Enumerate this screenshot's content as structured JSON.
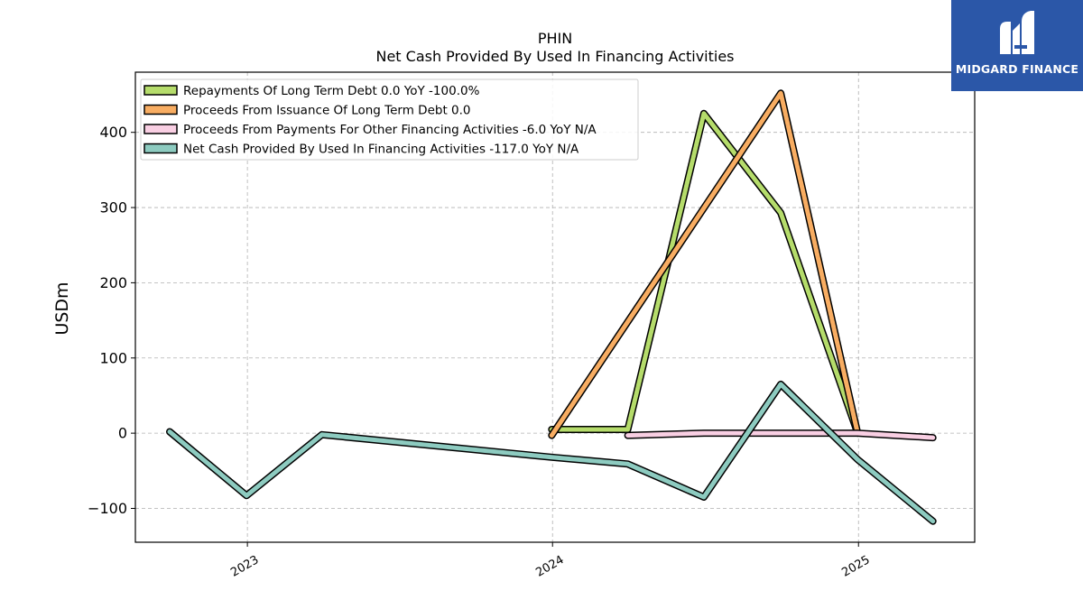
{
  "chart_data": {
    "type": "line",
    "title": "PHIN",
    "subtitle": "Net Cash Provided By Used In Financing Activities",
    "ylabel": "USDm",
    "xlabel": "",
    "ylim": [
      -145,
      480
    ],
    "xlim": [
      "2022-08-20",
      "2025-05-20"
    ],
    "grid": true,
    "legend_placement": "top-left",
    "x_ticks": [
      "2023-01-01",
      "2024-01-01",
      "2025-01-01"
    ],
    "x_tick_labels": [
      "2023",
      "2024",
      "2025"
    ],
    "y_ticks": [
      -100,
      0,
      100,
      200,
      300,
      400
    ],
    "y_tick_labels": [
      "−100",
      "0",
      "100",
      "200",
      "300",
      "400"
    ],
    "series": [
      {
        "name": "Repayments Of Long Term Debt",
        "legend": "Repayments Of Long Term Debt  0.0 YoY -100.0%",
        "color": "#b5dc6b",
        "points": [
          [
            "2023-12-31",
            5
          ],
          [
            "2024-03-31",
            5
          ],
          [
            "2024-06-30",
            425
          ],
          [
            "2024-09-30",
            293
          ],
          [
            "2024-12-31",
            0
          ]
        ]
      },
      {
        "name": "Proceeds From Issuance Of Long Term Debt",
        "legend": "Proceeds From Issuance Of Long Term Debt  0.0",
        "color": "#f8ad62",
        "points": [
          [
            "2023-12-31",
            -3
          ],
          [
            "2024-09-30",
            452
          ],
          [
            "2024-12-31",
            0
          ]
        ]
      },
      {
        "name": "Proceeds From Payments For Other Financing Activities",
        "legend": "Proceeds From Payments For Other Financing Activities  -6.0 YoY N/A",
        "color": "#f9cfe3",
        "points": [
          [
            "2024-03-31",
            -3
          ],
          [
            "2024-06-30",
            0
          ],
          [
            "2024-09-30",
            0
          ],
          [
            "2024-12-31",
            0
          ],
          [
            "2025-03-31",
            -6
          ]
        ]
      },
      {
        "name": "Net Cash Provided By Used In Financing Activities",
        "legend": "Net Cash Provided By Used In Financing Activities  -117.0 YoY N/A",
        "color": "#8dcbc0",
        "points": [
          [
            "2022-09-30",
            2
          ],
          [
            "2022-12-31",
            -83
          ],
          [
            "2023-03-31",
            -2
          ],
          [
            "2023-12-31",
            -32
          ],
          [
            "2024-03-31",
            -41
          ],
          [
            "2024-06-30",
            -85
          ],
          [
            "2024-09-30",
            65
          ],
          [
            "2024-12-31",
            -35
          ],
          [
            "2025-03-31",
            -117
          ]
        ]
      }
    ]
  },
  "logo": {
    "text": "MIDGARD FINANCE",
    "icon": "midgard-logo-icon",
    "color": "#2b57a8"
  }
}
